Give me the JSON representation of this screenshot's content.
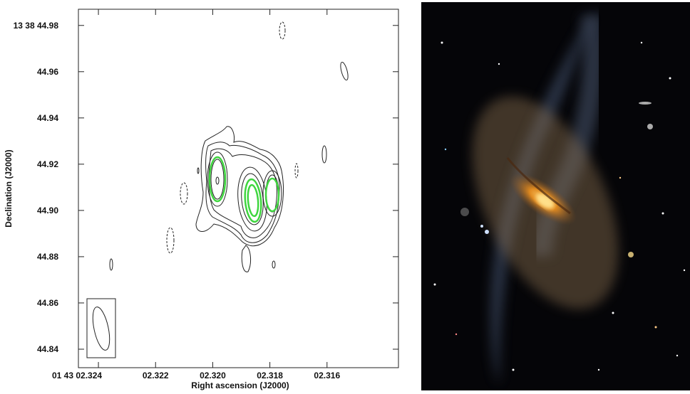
{
  "chart_data": {
    "type": "contour",
    "xlabel": "Right ascension (J2000)",
    "ylabel": "Declination (J2000)",
    "xlim": [
      2.3247,
      2.3135
    ],
    "ylim": [
      44.832,
      44.987
    ],
    "xticks": [
      {
        "value": 2.324,
        "label": "01 43 02.324"
      },
      {
        "value": 2.322,
        "label": "02.322"
      },
      {
        "value": 2.32,
        "label": "02.320"
      },
      {
        "value": 2.318,
        "label": "02.318"
      },
      {
        "value": 2.316,
        "label": "02.316"
      }
    ],
    "yticks": [
      {
        "value": 44.84,
        "label": "44.84"
      },
      {
        "value": 44.86,
        "label": "44.86"
      },
      {
        "value": 44.88,
        "label": "44.88"
      },
      {
        "value": 44.9,
        "label": "44.90"
      },
      {
        "value": 44.92,
        "label": "44.92"
      },
      {
        "value": 44.94,
        "label": "44.94"
      },
      {
        "value": 44.96,
        "label": "44.96"
      },
      {
        "value": 44.98,
        "label": "13 38 44.98"
      }
    ]
  }
}
